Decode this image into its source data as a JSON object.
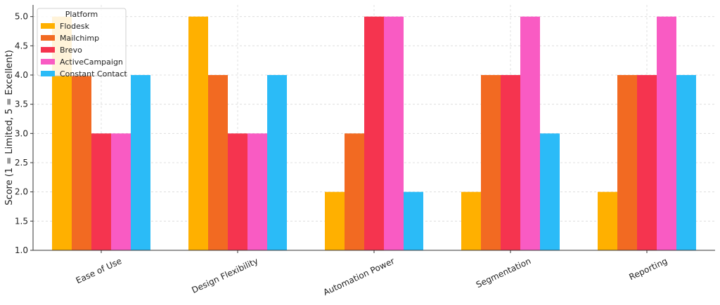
{
  "chart_data": {
    "type": "bar",
    "title": "",
    "xlabel": "",
    "ylabel": "Score (1 = Limited, 5 = Excellent)",
    "ylim": [
      1.0,
      5.2
    ],
    "yticks": [
      "1.0",
      "1.5",
      "2.0",
      "2.5",
      "3.0",
      "3.5",
      "4.0",
      "4.5",
      "5.0"
    ],
    "grid": true,
    "legend_title": "Platform",
    "legend_position": "top-left",
    "categories": [
      "Ease of Use",
      "Design Flexibility",
      "Automation Power",
      "Segmentation",
      "Reporting"
    ],
    "series": [
      {
        "name": "Flodesk",
        "color": "#FFB000",
        "values": [
          5,
          5,
          2,
          2,
          2
        ]
      },
      {
        "name": "Mailchimp",
        "color": "#F26A22",
        "values": [
          4,
          4,
          3,
          4,
          4
        ]
      },
      {
        "name": "Brevo",
        "color": "#F5344F",
        "values": [
          3,
          3,
          5,
          4,
          4
        ]
      },
      {
        "name": "ActiveCampaign",
        "color": "#F95BC3",
        "values": [
          3,
          3,
          5,
          5,
          5
        ]
      },
      {
        "name": "Constant Contact",
        "color": "#2BBBF7",
        "values": [
          4,
          4,
          2,
          3,
          4
        ]
      }
    ]
  }
}
